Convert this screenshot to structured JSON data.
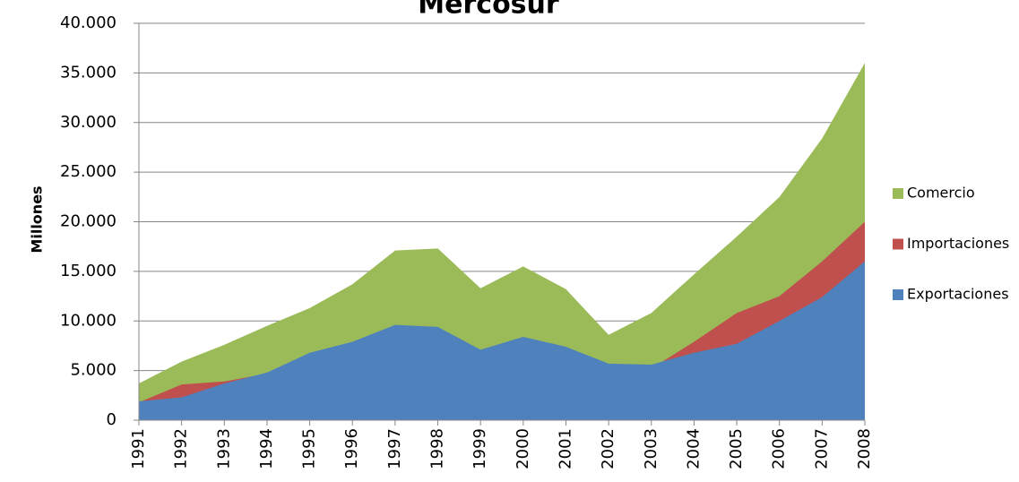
{
  "chart_data": {
    "type": "area",
    "title": "Mercosur",
    "ylabel": "Millones",
    "categories": [
      "1991",
      "1992",
      "1993",
      "1994",
      "1995",
      "1996",
      "1997",
      "1998",
      "1999",
      "2000",
      "2001",
      "2002",
      "2003",
      "2004",
      "2005",
      "2006",
      "2007",
      "2008"
    ],
    "series": [
      {
        "name": "Exportaciones",
        "color": "#4f81bd",
        "values": [
          1900,
          2300,
          3700,
          4800,
          6800,
          7900,
          9600,
          9400,
          7100,
          8400,
          7400,
          5700,
          5600,
          6800,
          7700,
          10000,
          12400,
          16000
        ]
      },
      {
        "name": "Importaciones",
        "color": "#c0504d",
        "values": [
          1800,
          3600,
          3900,
          4700,
          4500,
          5800,
          7500,
          7900,
          6200,
          7100,
          5800,
          2900,
          5200,
          7900,
          10800,
          12500,
          16000,
          20000
        ]
      },
      {
        "name": "Comercio",
        "color": "#9bbb59",
        "values": [
          3700,
          5900,
          7600,
          9500,
          11300,
          13700,
          17100,
          17300,
          13300,
          15500,
          13200,
          8600,
          10800,
          14700,
          18500,
          22500,
          28400,
          36000
        ]
      }
    ],
    "ylim": [
      0,
      40000
    ],
    "yticks": [
      0,
      {
        "value": 5000,
        "label": "5.000"
      },
      {
        "value": 10000,
        "label": "10.000"
      },
      {
        "value": 15000,
        "label": "15.000"
      },
      {
        "value": 20000,
        "label": "20.000"
      },
      {
        "value": 25000,
        "label": "25.000"
      },
      {
        "value": 30000,
        "label": "30.000"
      },
      {
        "value": 35000,
        "label": "35.000"
      },
      {
        "value": 40000,
        "label": "40.000"
      }
    ],
    "grid": true,
    "legend": "right"
  }
}
